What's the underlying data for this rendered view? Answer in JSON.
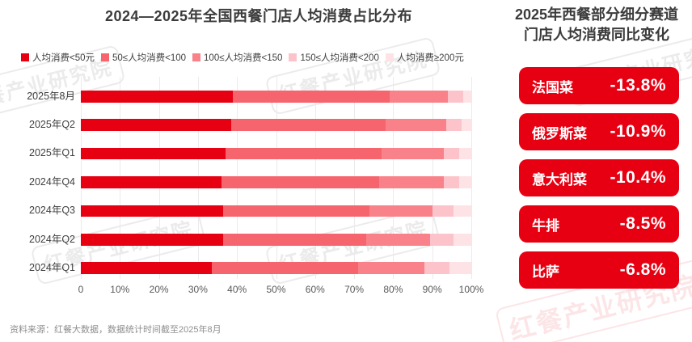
{
  "left_chart": {
    "title": "2024—2025年全国西餐门店人均消费占比分布"
  },
  "chart_data": {
    "type": "bar",
    "orientation": "horizontal-stacked",
    "title": "2024—2025年全国西餐门店人均消费占比分布",
    "categories": [
      "2025年8月",
      "2025年Q2",
      "2025年Q1",
      "2024年Q4",
      "2024年Q3",
      "2024年Q2",
      "2024年Q1"
    ],
    "series": [
      {
        "name": "人均消费<50元",
        "color": "#e60012",
        "values": [
          39,
          38.5,
          37,
          36,
          36.5,
          36.5,
          33.5
        ]
      },
      {
        "name": "50≤人均消费<100",
        "color": "#f6646e",
        "values": [
          40,
          39.5,
          40,
          40.5,
          37.5,
          36.5,
          37.5
        ]
      },
      {
        "name": "100≤人均消费<150",
        "color": "#f9828a",
        "values": [
          15,
          15.5,
          16,
          16.5,
          16,
          16.5,
          17
        ]
      },
      {
        "name": "150≤人均消费<200",
        "color": "#fcc4ca",
        "values": [
          4,
          4,
          4,
          4,
          5.5,
          6,
          6.5
        ]
      },
      {
        "name": "人均消费≥200元",
        "color": "#fde3e6",
        "values": [
          2,
          2.5,
          3,
          3,
          4.5,
          4.5,
          5.5
        ]
      }
    ],
    "xlim": [
      0,
      100
    ],
    "x_tick_labels": [
      "0",
      "10%",
      "20%",
      "30%",
      "40%",
      "50%",
      "60%",
      "70%",
      "80%",
      "90%",
      "100%"
    ],
    "legend_position": "top",
    "grid": "vertical"
  },
  "right_panel": {
    "title_line1": "2025年西餐部分细分赛道",
    "title_line2": "门店人均消费同比变化",
    "box_color": "#e60012",
    "items": [
      {
        "name": "法国菜",
        "value": "-13.8%"
      },
      {
        "name": "俄罗斯菜",
        "value": "-10.9%"
      },
      {
        "name": "意大利菜",
        "value": "-10.4%"
      },
      {
        "name": "牛排",
        "value": "-8.5%"
      },
      {
        "name": "比萨",
        "value": "-6.8%"
      }
    ]
  },
  "footer": {
    "source": "资料来源：红餐大数据，数据统计时间截至2025年8月"
  },
  "watermark": {
    "text": "红餐产业研究院"
  }
}
